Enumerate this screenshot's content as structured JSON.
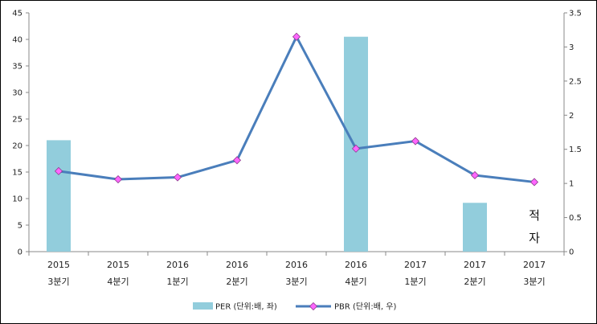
{
  "chart_data": {
    "type": "bar",
    "categories": [
      [
        "2015",
        "3분기"
      ],
      [
        "2015",
        "4분기"
      ],
      [
        "2016",
        "1분기"
      ],
      [
        "2016",
        "2분기"
      ],
      [
        "2016",
        "3분기"
      ],
      [
        "2016",
        "4분기"
      ],
      [
        "2017",
        "1분기"
      ],
      [
        "2017",
        "2분기"
      ],
      [
        "2017",
        "3분기"
      ]
    ],
    "series": [
      {
        "name": "PER (단위:배, 좌)",
        "type": "bar",
        "axis": "left",
        "color": "#92cddc",
        "values": [
          21,
          null,
          null,
          null,
          null,
          40.5,
          null,
          9.2,
          null
        ]
      },
      {
        "name": "PBR (단위:배, 우)",
        "type": "line",
        "axis": "right",
        "color": "#4a7ebb",
        "marker_color": "#ff66ff",
        "values": [
          1.18,
          1.06,
          1.09,
          1.34,
          3.15,
          1.51,
          1.62,
          1.12,
          1.02
        ]
      }
    ],
    "y_left": {
      "ylim": [
        0,
        45
      ],
      "ticks": [
        0,
        5,
        10,
        15,
        20,
        25,
        30,
        35,
        40,
        45
      ]
    },
    "y_right": {
      "ylim": [
        0,
        3.5
      ],
      "ticks": [
        "0",
        "0.5",
        "1",
        "1.5",
        "2",
        "2.5",
        "3",
        "3.5"
      ]
    },
    "annotation": {
      "category_index": 8,
      "lines": [
        "적",
        "자"
      ]
    },
    "legend": {
      "position": "bottom"
    },
    "grid": false
  }
}
